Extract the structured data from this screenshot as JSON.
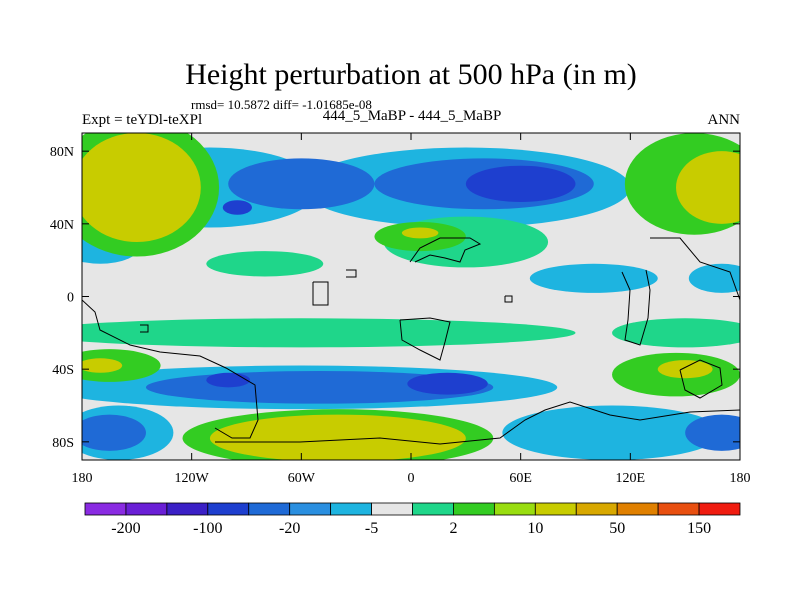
{
  "chart_data": {
    "type": "heatmap",
    "title": "Height perturbation at 500 hPa (in m)",
    "stats_text": "rmsd= 10.5872 diff= -1.01685e-08",
    "left_label": "Expt = teYDl-teXPl",
    "center_label": "444_5_MaBP - 444_5_MaBP",
    "right_label": "ANN",
    "x_ticks": [
      "180",
      "120W",
      "60W",
      "0",
      "60E",
      "120E",
      "180"
    ],
    "y_ticks": [
      "80N",
      "40N",
      "0",
      "40S",
      "80S"
    ],
    "xlim": [
      -180,
      180
    ],
    "ylim": [
      -90,
      90
    ],
    "colorbar": {
      "colors": [
        "#8a2be2",
        "#6a1fd6",
        "#3b20c6",
        "#1e3fcf",
        "#1f6ad6",
        "#2a8fe0",
        "#1eb4e0",
        "#e6e6e6",
        "#1fd68a",
        "#33cc22",
        "#99dd10",
        "#c8cc00",
        "#d8a800",
        "#e08000",
        "#e84f10",
        "#f01c10"
      ],
      "labels": [
        "-200",
        "-100",
        "-20",
        "-5",
        "2",
        "10",
        "50",
        "150"
      ]
    },
    "fields": [
      {
        "level": -5,
        "lon": -110,
        "lat": 60,
        "rlon": 60,
        "rlat": 22
      },
      {
        "level": -5,
        "lon": 30,
        "lat": 60,
        "rlon": 90,
        "rlat": 22
      },
      {
        "level": -20,
        "lon": -60,
        "lat": 62,
        "rlon": 40,
        "rlat": 14
      },
      {
        "level": -20,
        "lon": 40,
        "lat": 62,
        "rlon": 60,
        "rlat": 14
      },
      {
        "level": -100,
        "lon": 60,
        "lat": 62,
        "rlon": 30,
        "rlat": 10
      },
      {
        "level": -100,
        "lon": -95,
        "lat": 49,
        "rlon": 8,
        "rlat": 4
      },
      {
        "level": 10,
        "lon": -150,
        "lat": 60,
        "rlon": 45,
        "rlat": 38
      },
      {
        "level": 50,
        "lon": -150,
        "lat": 60,
        "rlon": 35,
        "rlat": 30
      },
      {
        "level": 10,
        "lon": 155,
        "lat": 62,
        "rlon": 38,
        "rlat": 28
      },
      {
        "level": 50,
        "lon": 170,
        "lat": 60,
        "rlon": 25,
        "rlat": 20
      },
      {
        "level": 2,
        "lon": -80,
        "lat": 18,
        "rlon": 32,
        "rlat": 7
      },
      {
        "level": 2,
        "lon": 30,
        "lat": 30,
        "rlon": 45,
        "rlat": 14
      },
      {
        "level": 10,
        "lon": 5,
        "lat": 33,
        "rlon": 25,
        "rlat": 8
      },
      {
        "level": 50,
        "lon": 5,
        "lat": 35,
        "rlon": 10,
        "rlat": 3
      },
      {
        "level": -5,
        "lon": -170,
        "lat": 28,
        "rlon": 22,
        "rlat": 10
      },
      {
        "level": -5,
        "lon": 170,
        "lat": 10,
        "rlon": 18,
        "rlat": 8
      },
      {
        "level": -5,
        "lon": 100,
        "lat": 10,
        "rlon": 35,
        "rlat": 8
      },
      {
        "level": 2,
        "lon": -60,
        "lat": -20,
        "rlon": 150,
        "rlat": 8
      },
      {
        "level": 2,
        "lon": 150,
        "lat": -20,
        "rlon": 40,
        "rlat": 8
      },
      {
        "level": -5,
        "lon": -60,
        "lat": -50,
        "rlon": 140,
        "rlat": 12
      },
      {
        "level": -20,
        "lon": -50,
        "lat": -50,
        "rlon": 95,
        "rlat": 9
      },
      {
        "level": -100,
        "lon": 20,
        "lat": -48,
        "rlon": 22,
        "rlat": 6
      },
      {
        "level": -100,
        "lon": -100,
        "lat": -46,
        "rlon": 12,
        "rlat": 4
      },
      {
        "level": -5,
        "lon": 110,
        "lat": -75,
        "rlon": 60,
        "rlat": 15
      },
      {
        "level": -5,
        "lon": -160,
        "lat": -75,
        "rlon": 30,
        "rlat": 15
      },
      {
        "level": -20,
        "lon": 170,
        "lat": -75,
        "rlon": 20,
        "rlat": 10
      },
      {
        "level": -20,
        "lon": -165,
        "lat": -75,
        "rlon": 20,
        "rlat": 10
      },
      {
        "level": 10,
        "lon": -165,
        "lat": -38,
        "rlon": 28,
        "rlat": 9
      },
      {
        "level": 50,
        "lon": -170,
        "lat": -38,
        "rlon": 12,
        "rlat": 4
      },
      {
        "level": 10,
        "lon": 145,
        "lat": -43,
        "rlon": 35,
        "rlat": 12
      },
      {
        "level": 50,
        "lon": 150,
        "lat": -40,
        "rlon": 15,
        "rlat": 5
      },
      {
        "level": 10,
        "lon": -40,
        "lat": -78,
        "rlon": 85,
        "rlat": 16
      },
      {
        "level": 50,
        "lon": -40,
        "lat": -78,
        "rlon": 70,
        "rlat": 13
      }
    ]
  }
}
